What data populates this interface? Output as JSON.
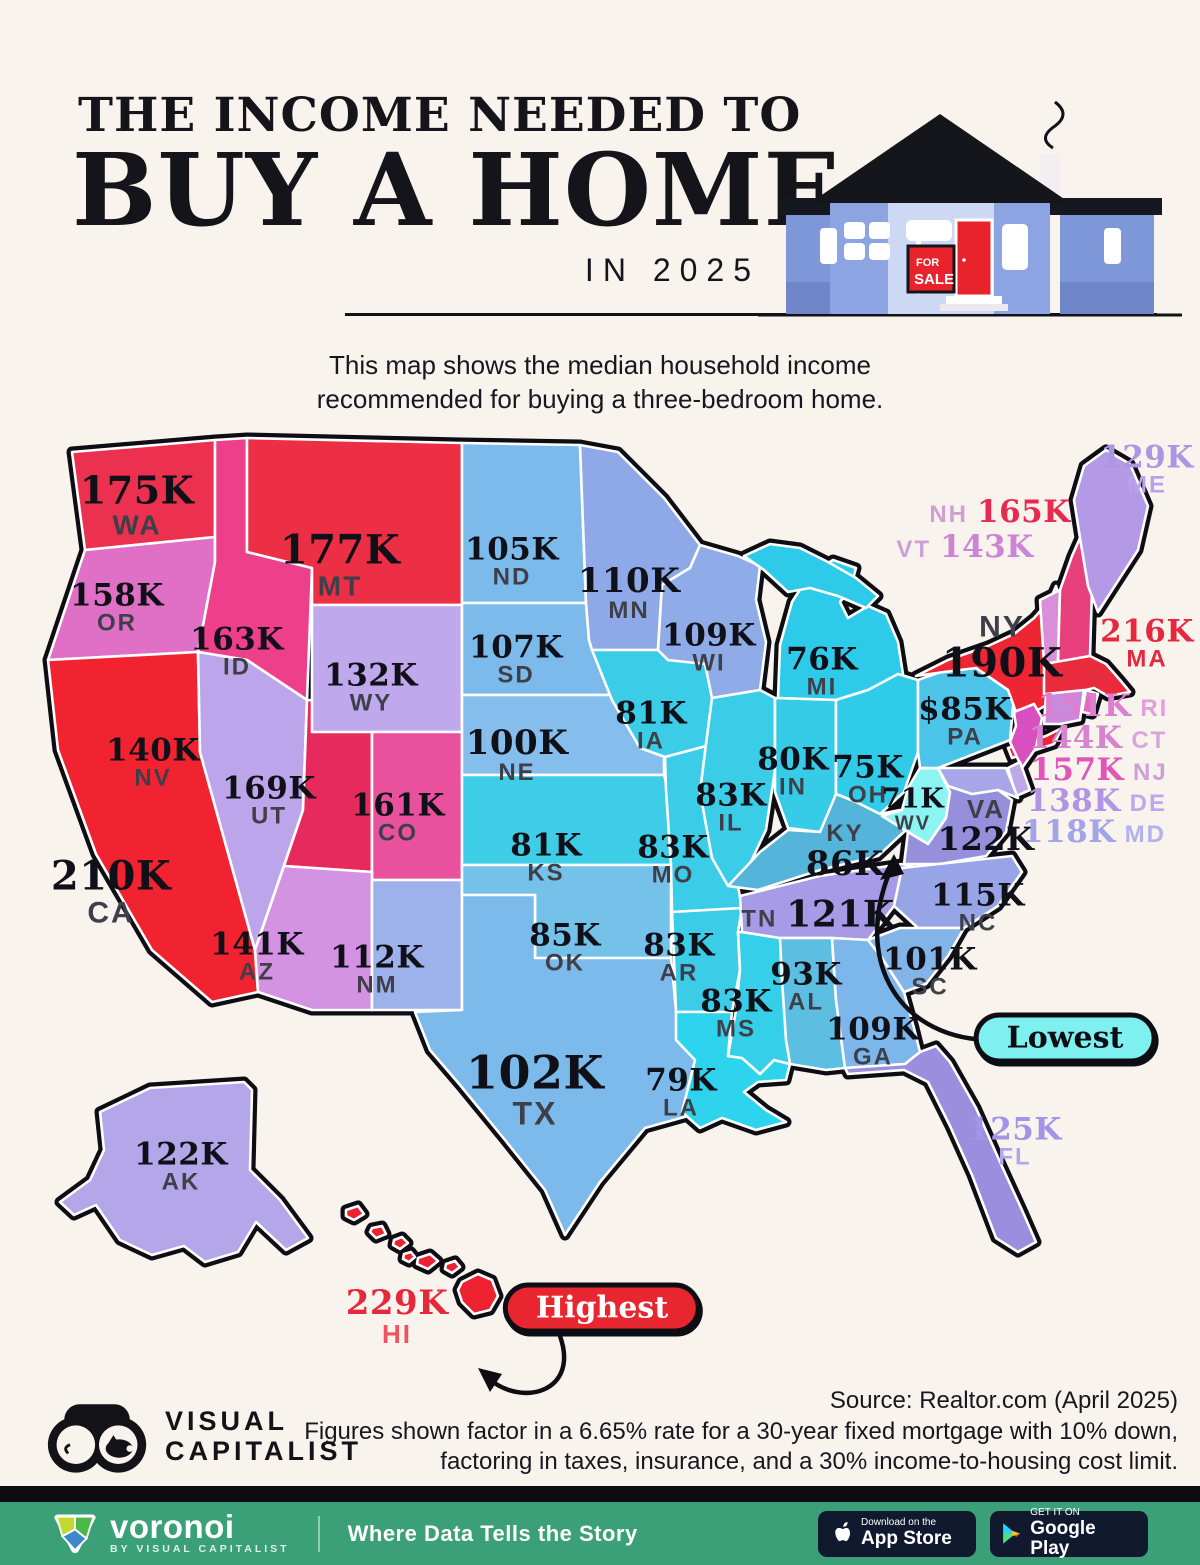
{
  "header": {
    "title_line1": "THE INCOME NEEDED TO",
    "title_line2": "BUY A HOME",
    "year_line": "IN 2025",
    "subtitle": "This map shows the median household income recommended for buying a three-bedroom home."
  },
  "house": {
    "sign_line1": "FOR",
    "sign_line2": "SALE"
  },
  "map": {
    "callouts": {
      "lowest": "Lowest",
      "highest": "Highest"
    },
    "states": [
      {
        "code": "WA",
        "value": "175K",
        "abbr": "WA",
        "fill": "#ec3150"
      },
      {
        "code": "OR",
        "value": "158K",
        "abbr": "OR",
        "fill": "#e070c6"
      },
      {
        "code": "CA",
        "value": "210K",
        "abbr": "CA",
        "fill": "#f22330"
      },
      {
        "code": "ID",
        "value": "163K",
        "abbr": "ID",
        "fill": "#ee3f8b"
      },
      {
        "code": "NV",
        "value": "140K",
        "abbr": "NV",
        "fill": "#bca5ea"
      },
      {
        "code": "UT",
        "value": "169K",
        "abbr": "UT",
        "fill": "#e72a5e"
      },
      {
        "code": "MT",
        "value": "177K",
        "abbr": "MT",
        "fill": "#ec2f44"
      },
      {
        "code": "WY",
        "value": "132K",
        "abbr": "WY",
        "fill": "#bfa9ec"
      },
      {
        "code": "CO",
        "value": "161K",
        "abbr": "CO",
        "fill": "#e9519e"
      },
      {
        "code": "AZ",
        "value": "141K",
        "abbr": "AZ",
        "fill": "#d392e2"
      },
      {
        "code": "NM",
        "value": "112K",
        "abbr": "NM",
        "fill": "#9db2ea"
      },
      {
        "code": "ND",
        "value": "105K",
        "abbr": "ND",
        "fill": "#7cbaec"
      },
      {
        "code": "SD",
        "value": "107K",
        "abbr": "SD",
        "fill": "#7cbaec"
      },
      {
        "code": "NE",
        "value": "100K",
        "abbr": "NE",
        "fill": "#85bdec"
      },
      {
        "code": "KS",
        "value": "81K",
        "abbr": "KS",
        "fill": "#3ecde7"
      },
      {
        "code": "OK",
        "value": "85K",
        "abbr": "OK",
        "fill": "#74c2ea"
      },
      {
        "code": "TX",
        "value": "102K",
        "abbr": "TX",
        "fill": "#7cbaec"
      },
      {
        "code": "MN",
        "value": "110K",
        "abbr": "MN",
        "fill": "#8ea8e8"
      },
      {
        "code": "IA",
        "value": "81K",
        "abbr": "IA",
        "fill": "#3bcde8"
      },
      {
        "code": "MO",
        "value": "83K",
        "abbr": "MO",
        "fill": "#3bcde8"
      },
      {
        "code": "AR",
        "value": "83K",
        "abbr": "AR",
        "fill": "#3bcde8"
      },
      {
        "code": "LA",
        "value": "79K",
        "abbr": "LA",
        "fill": "#2ed3ee"
      },
      {
        "code": "WI",
        "value": "109K",
        "abbr": "WI",
        "fill": "#8fabe8"
      },
      {
        "code": "IL",
        "value": "83K",
        "abbr": "IL",
        "fill": "#3bcde8"
      },
      {
        "code": "MS",
        "value": "83K",
        "abbr": "MS",
        "fill": "#35cfe9"
      },
      {
        "code": "MI",
        "value": "76K",
        "abbr": "MI",
        "fill": "#2dcbe9"
      },
      {
        "code": "IN",
        "value": "80K",
        "abbr": "IN",
        "fill": "#36cce8"
      },
      {
        "code": "OH",
        "value": "75K",
        "abbr": "OH",
        "fill": "#2fcbe9"
      },
      {
        "code": "KY",
        "value": "86K",
        "abbr": "KY",
        "fill": "#54b4da"
      },
      {
        "code": "TN",
        "value": "121K",
        "abbr": "TN",
        "fill": "#a79ae6"
      },
      {
        "code": "AL",
        "value": "93K",
        "abbr": "AL",
        "fill": "#5cbfe2"
      },
      {
        "code": "GA",
        "value": "109K",
        "abbr": "GA",
        "fill": "#7db6ea"
      },
      {
        "code": "WV",
        "value": "71K",
        "abbr": "WV",
        "fill": "#8df4f4"
      },
      {
        "code": "VA",
        "value": "122K",
        "abbr": "VA",
        "fill": "#968fdc"
      },
      {
        "code": "NC",
        "value": "115K",
        "abbr": "NC",
        "fill": "#97a4e6"
      },
      {
        "code": "SC",
        "value": "101K",
        "abbr": "SC",
        "fill": "#83b4e8"
      },
      {
        "code": "PA",
        "value": "$85K",
        "abbr": "PA",
        "fill": "#4cc3e8"
      },
      {
        "code": "NY",
        "value": "190K",
        "abbr": "NY",
        "fill": "#ee2532"
      },
      {
        "code": "VT",
        "value": "143K",
        "abbr": "VT",
        "fill": "#d98fd8",
        "vc": "#cd84d6",
        "ac": "#cfa0d8"
      },
      {
        "code": "NH",
        "value": "165K",
        "abbr": "NH",
        "fill": "#e7407a",
        "vc": "#e62a50",
        "ac": "#cfa0d4"
      },
      {
        "code": "ME",
        "value": "129K",
        "abbr": "ME",
        "fill": "#b49ae6",
        "vc": "#ac95e2",
        "ac": "#b7a3e8"
      },
      {
        "code": "MA",
        "value": "216K",
        "abbr": "MA",
        "fill": "#e92b3e",
        "vc": "#e6283e",
        "ac": "#e6283e"
      },
      {
        "code": "RI",
        "value": "151K",
        "abbr": "RI",
        "fill": "#e36bbf",
        "vc": "#dd7ed0",
        "ac": "#e2a0da"
      },
      {
        "code": "CT",
        "value": "144K",
        "abbr": "CT",
        "fill": "#c98ade",
        "vc": "#d684cf",
        "ac": "#daa5da"
      },
      {
        "code": "NJ",
        "value": "157K",
        "abbr": "NJ",
        "fill": "#d94fc0",
        "vc": "#e155b8",
        "ac": "#cfa0d8"
      },
      {
        "code": "DE",
        "value": "138K",
        "abbr": "DE",
        "fill": "#bda9e8",
        "vc": "#b195e4",
        "ac": "#bfa8ea"
      },
      {
        "code": "MD",
        "value": "118K",
        "abbr": "MD",
        "fill": "#a8a6e8",
        "vc": "#a3a3e8",
        "ac": "#b2b2ee"
      },
      {
        "code": "FL",
        "value": "125K",
        "abbr": "FL",
        "fill": "#9c8edf",
        "vc": "#a294e6",
        "ac": "#b1a6ec"
      },
      {
        "code": "AK",
        "value": "122K",
        "abbr": "AK",
        "fill": "#b3a6e9"
      },
      {
        "code": "HI",
        "value": "229K",
        "abbr": "HI",
        "fill": "#ee2130",
        "vc": "#e6283c",
        "ac": "#ea5560"
      }
    ]
  },
  "notes": {
    "source": "Source: Realtor.com (April 2025)",
    "line2": "Figures shown factor in a 6.65% rate for a 30-year fixed mortgage with 10% down,",
    "line3": "factoring in taxes, insurance, and a 30% income-to-housing cost limit."
  },
  "logo": {
    "line1": "VISUAL",
    "line2": "CAPITALIST"
  },
  "footer": {
    "brand": "voronoi",
    "brand_sub": "BY VISUAL CAPITALIST",
    "tagline": "Where Data Tells the Story",
    "appstore_line1": "Download on the",
    "appstore_line2": "App Store",
    "gplay_line1": "GET IT ON",
    "gplay_line2": "Google Play"
  },
  "colors": {
    "background": "#f8f3ec",
    "outline": "#0d0d13",
    "footer_green": "#3ba077",
    "badge_bg": "#10192e",
    "lowest_fill": "#7df0ef",
    "highest_fill": "#e8262f"
  }
}
